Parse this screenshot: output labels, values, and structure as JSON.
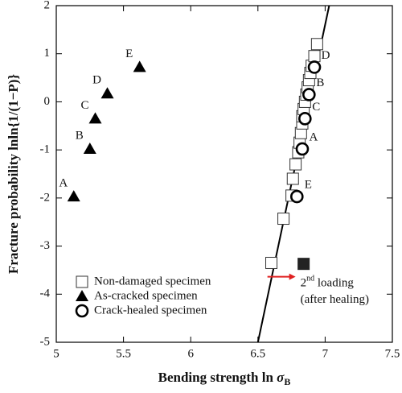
{
  "chart_data": {
    "type": "scatter",
    "xlabel": "Bending strength  ln",
    "xlabel_symbol": "σ",
    "xlabel_subscript": "B",
    "ylabel": "Fracture probability  lnln{1/(1−P)}",
    "xlim": [
      5,
      7.5
    ],
    "xticks": [
      5,
      5.5,
      6,
      6.5,
      7,
      7.5
    ],
    "ylim": [
      -5,
      2
    ],
    "yticks": [
      -5,
      -4,
      -3,
      -2,
      -1,
      0,
      1,
      2
    ],
    "fit_line": {
      "x": [
        6.5,
        7.03
      ],
      "y": [
        -5,
        2
      ]
    },
    "series": [
      {
        "name": "Non-damaged specimen",
        "marker": "square-open",
        "color": "#333333",
        "x": [
          6.6,
          6.69,
          6.75,
          6.76,
          6.78,
          6.8,
          6.81,
          6.82,
          6.83,
          6.83,
          6.84,
          6.85,
          6.86,
          6.87,
          6.88,
          6.89,
          6.9,
          6.92,
          6.94
        ],
        "y": [
          -3.35,
          -2.43,
          -1.95,
          -1.6,
          -1.3,
          -1.05,
          -0.85,
          -0.65,
          -0.45,
          -0.3,
          -0.15,
          0.0,
          0.15,
          0.3,
          0.45,
          0.6,
          0.75,
          0.95,
          1.2
        ]
      },
      {
        "name": "As-cracked specimen",
        "marker": "triangle",
        "color": "#000000",
        "label_side": "left",
        "x": [
          5.13,
          5.25,
          5.29,
          5.38,
          5.62
        ],
        "y": [
          -1.97,
          -0.98,
          -0.35,
          0.17,
          0.72
        ],
        "point_labels": [
          "A",
          "B",
          "C",
          "D",
          "E"
        ]
      },
      {
        "name": "Crack-healed specimen",
        "marker": "circle-open",
        "color": "#000000",
        "label_side": "right",
        "x": [
          6.83,
          6.88,
          6.85,
          6.92,
          6.79
        ],
        "y": [
          -0.98,
          0.15,
          -0.35,
          0.72,
          -1.97
        ],
        "point_labels": [
          "A",
          "B",
          "C",
          "D",
          "E"
        ]
      }
    ],
    "second_loading": {
      "x": [
        6.84
      ],
      "y": [
        -3.37
      ],
      "label": "2",
      "label_sup": "nd",
      "label_rest": " loading",
      "label_line2": "(after healing)"
    }
  }
}
